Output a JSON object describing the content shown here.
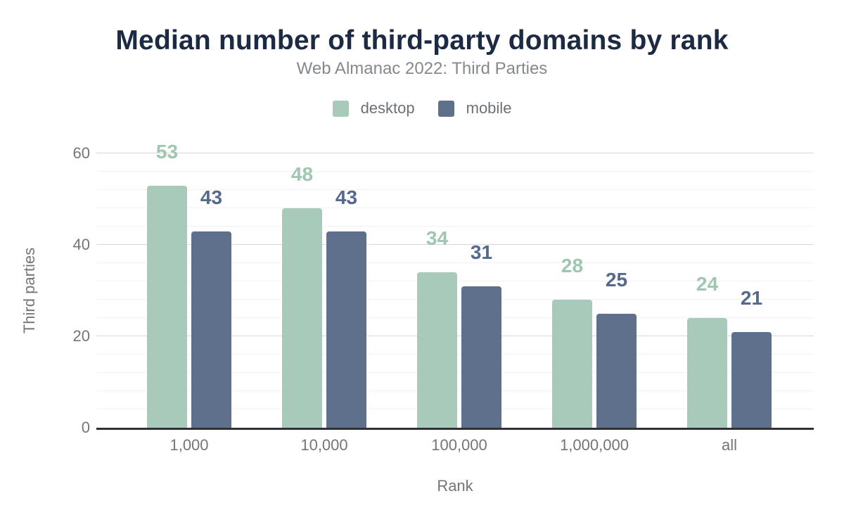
{
  "page": {
    "title": "Median number of third-party domains by rank",
    "subtitle": "Web Almanac 2022: Third Parties"
  },
  "legend": {
    "items": [
      {
        "label": "desktop",
        "color": "#a8cabb"
      },
      {
        "label": "mobile",
        "color": "#5f708c"
      }
    ]
  },
  "chart_data": {
    "type": "bar",
    "title": "Median number of third-party domains by rank",
    "subtitle": "Web Almanac 2022: Third Parties",
    "categories": [
      "1,000",
      "10,000",
      "100,000",
      "1,000,000",
      "all"
    ],
    "series": [
      {
        "name": "desktop",
        "values": [
          53,
          48,
          34,
          28,
          24
        ],
        "color": "#a8cabb",
        "label_color": "#9fc7b0"
      },
      {
        "name": "mobile",
        "values": [
          43,
          43,
          31,
          25,
          21
        ],
        "color": "#5f708c",
        "label_color": "#56698d"
      }
    ],
    "xlabel": "Rank",
    "ylabel": "Third parties",
    "ylim": [
      0,
      60
    ],
    "yticks": [
      0,
      20,
      40,
      60
    ],
    "grid": "horizontal, minor lines between labeled majors",
    "legend_position": "top",
    "value_labels": "above bars, colored per series"
  }
}
